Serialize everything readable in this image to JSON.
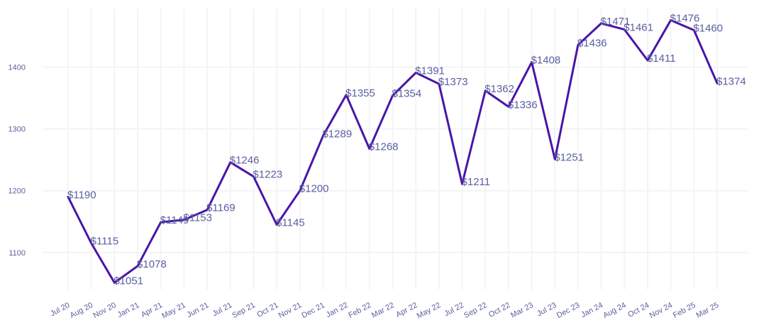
{
  "chart_data": {
    "type": "line",
    "title": "",
    "xlabel": "",
    "ylabel": "",
    "ylim": [
      1040,
      1495
    ],
    "yticks": [
      1100,
      1200,
      1300,
      1400
    ],
    "grid": true,
    "legend": "none",
    "categories": [
      "Jul 20",
      "Aug 20",
      "Nov 20",
      "Jan 21",
      "Apr 21",
      "May 21",
      "Jun 21",
      "Jul 21",
      "Sep 21",
      "Oct 21",
      "Nov 21",
      "Dec 21",
      "Jan 22",
      "Feb 22",
      "Mar 22",
      "Apr 22",
      "May 22",
      "Jul 22",
      "Sep 22",
      "Oct 22",
      "Mar 23",
      "Jul 23",
      "Dec 23",
      "Jan 24",
      "Aug 24",
      "Oct 24",
      "Nov 24",
      "Feb 25",
      "Mar 25"
    ],
    "series": [
      {
        "color": "#4a15a8",
        "values": [
          1190,
          1115,
          1051,
          1078,
          1149,
          1153,
          1169,
          1246,
          1223,
          1145,
          1200,
          1289,
          1355,
          1268,
          1354,
          1391,
          1373,
          1211,
          1362,
          1336,
          1408,
          1251,
          1436,
          1471,
          1461,
          1411,
          1476,
          1460,
          1374
        ],
        "labels": [
          "$1190",
          "$1115",
          "$1051",
          "$1078",
          "$1149",
          "$1153",
          "$1169",
          "$1246",
          "$1223",
          "$1145",
          "$1200",
          "$1289",
          "$1355",
          "$1268",
          "$1354",
          "$1391",
          "$1373",
          "$1211",
          "$1362",
          "$1336",
          "$1408",
          "$1251",
          "$1436",
          "$1471",
          "$1461",
          "$1411",
          "$1476",
          "$1460",
          "$1374"
        ]
      }
    ]
  },
  "colors": {
    "line": "#4a15a8",
    "text": "#5a5fa0",
    "grid": "#f4f4f7"
  }
}
